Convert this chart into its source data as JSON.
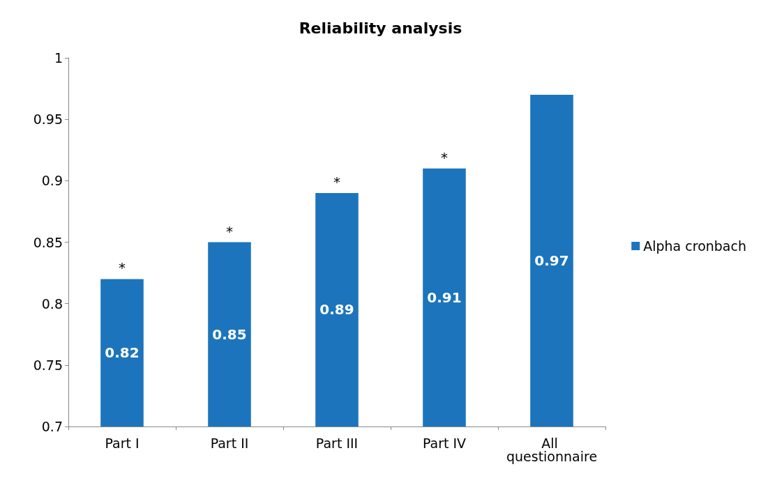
{
  "chart_data": {
    "type": "bar",
    "title": "Reliability analysis",
    "categories": [
      "Part I",
      "Part II",
      "Part III",
      "Part IV",
      "All questionnaire"
    ],
    "series": [
      {
        "name": "Alpha cronbach",
        "color": "#1c75bc",
        "values": [
          0.82,
          0.85,
          0.89,
          0.91,
          0.97
        ]
      }
    ],
    "ylim": [
      0.7,
      1
    ],
    "yticks": [
      0.7,
      0.75,
      0.8,
      0.85,
      0.9,
      0.95,
      1
    ],
    "data_labels": true,
    "grid": false,
    "legend": "right",
    "annotations": [
      {
        "text": "*",
        "x": "Part I",
        "y": 0.82
      },
      {
        "text": "*",
        "x": "Part II",
        "y": 0.85
      },
      {
        "text": "*",
        "x": "Part III",
        "y": 0.89
      },
      {
        "text": "*",
        "x": "Part IV",
        "y": 0.91
      }
    ]
  }
}
